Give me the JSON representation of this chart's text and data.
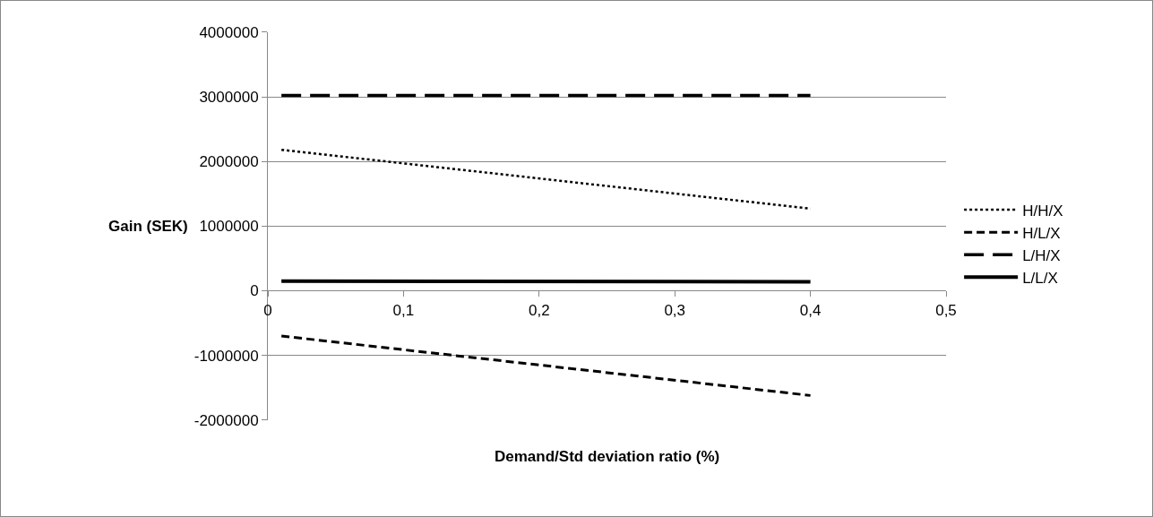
{
  "chart_data": {
    "type": "line",
    "xlabel": "Demand/Std deviation ratio (%)",
    "ylabel": "Gain (SEK)",
    "x": [
      0.01,
      0.4
    ],
    "xlim": [
      0,
      0.5
    ],
    "xticks": [
      0,
      {
        "value": 0.1,
        "label": "0,1"
      },
      {
        "value": 0.2,
        "label": "0,2"
      },
      {
        "value": 0.3,
        "label": "0,3"
      },
      {
        "value": 0.4,
        "label": "0,4"
      },
      {
        "value": 0.5,
        "label": "0,5"
      }
    ],
    "ylim": [
      -2000000,
      4000000
    ],
    "yticks": [
      -2000000,
      -1000000,
      0,
      1000000,
      2000000,
      3000000,
      4000000
    ],
    "grid": "y",
    "legend": "right",
    "marker": "none",
    "series": [
      {
        "name": "H/H/X",
        "color": "#000000",
        "line_style": "dotted",
        "values": [
          2180000,
          1270000
        ]
      },
      {
        "name": "H/L/X",
        "color": "#000000",
        "line_style": "dashed",
        "values": [
          -700000,
          -1620000
        ]
      },
      {
        "name": "L/H/X",
        "color": "#000000",
        "line_style": "longdash",
        "values": [
          3020000,
          3020000
        ]
      },
      {
        "name": "L/L/X",
        "color": "#000000",
        "line_style": "solid",
        "values": [
          150000,
          140000
        ]
      }
    ]
  }
}
